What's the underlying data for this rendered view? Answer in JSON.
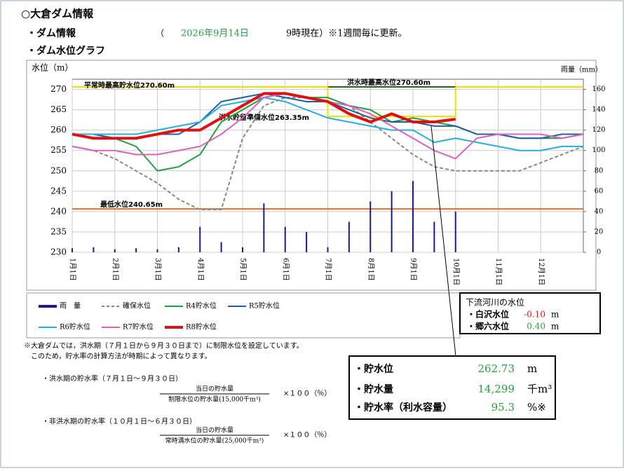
{
  "header": {
    "title": "○大倉ダム情報",
    "info_label": "・ダム情報",
    "paren_open": "（",
    "date": "2026年9月14日",
    "time_note": "9時現在）※1週間毎に更新。",
    "graph_label": "・ダム水位グラフ"
  },
  "chart_data": {
    "type": "line",
    "y_label": "水位（m）",
    "y2_label": "雨量（mm）",
    "categories": [
      "1月1日",
      null,
      "2月1日",
      null,
      "3月1日",
      null,
      "4月1日",
      null,
      "5月1日",
      null,
      "6月1日",
      null,
      "7月1日",
      null,
      "8月1日",
      null,
      "9月1日",
      null,
      "10月1日",
      null,
      "11月1日",
      null,
      "12月1日",
      null,
      null
    ],
    "ylim": [
      230,
      272.5
    ],
    "yticks": [
      230,
      235,
      240,
      245,
      250,
      255,
      260,
      265,
      270
    ],
    "y2lim": [
      0,
      170
    ],
    "y2ticks": [
      0,
      20,
      40,
      60,
      80,
      100,
      120,
      140,
      160
    ],
    "grid": true,
    "series": [
      {
        "name": "雨　量",
        "type": "bar",
        "axis": "y2",
        "color": "#1a1a8c",
        "values": [
          4,
          5,
          3,
          4,
          3,
          5,
          25,
          10,
          5,
          48,
          25,
          20,
          5,
          30,
          50,
          60,
          70,
          30,
          40,
          0,
          0,
          0,
          0,
          0,
          0
        ]
      },
      {
        "name": "確保水位",
        "color": "#888888",
        "dash": true,
        "values": [
          256,
          255,
          253,
          250,
          247,
          243,
          240.5,
          240.5,
          258,
          266,
          268,
          268,
          267,
          266,
          262,
          258,
          254,
          251,
          250,
          250,
          250,
          250,
          252,
          254,
          256
        ]
      },
      {
        "name": "R4貯水位",
        "color": "#22a040",
        "values": [
          259,
          259,
          258,
          256,
          250,
          251,
          254,
          262,
          265,
          268,
          269,
          268,
          268,
          266,
          265,
          262,
          263,
          262,
          261,
          259,
          259,
          258,
          258,
          258,
          259
        ]
      },
      {
        "name": "R5貯水位",
        "color": "#1f5fa8",
        "values": [
          259,
          259,
          258,
          258,
          259,
          259,
          262,
          267,
          268,
          269,
          268,
          267,
          267,
          265,
          263,
          262,
          262,
          261,
          261,
          259,
          259,
          258,
          258,
          259,
          259
        ]
      },
      {
        "name": "R6貯水位",
        "color": "#22b0e0",
        "values": [
          259,
          259,
          259,
          259,
          260,
          261,
          262,
          266,
          267,
          268,
          267,
          265,
          263,
          262,
          261,
          260,
          260,
          257,
          258,
          257,
          256,
          255,
          255,
          256,
          256
        ]
      },
      {
        "name": "R7貯水位",
        "color": "#e060c0",
        "values": [
          256,
          255,
          255,
          254,
          254,
          255,
          256,
          259,
          263,
          268,
          269,
          268,
          267,
          266,
          264,
          261,
          258,
          255,
          253,
          258,
          259,
          259,
          259,
          258,
          259
        ]
      },
      {
        "name": "R8貯水位",
        "color": "#e01010",
        "width": 4,
        "values": [
          259,
          258,
          258,
          258,
          259,
          260,
          260,
          263,
          266,
          269,
          269,
          268,
          267,
          264,
          262,
          264,
          262,
          262,
          262.7,
          null,
          null,
          null,
          null,
          null,
          null
        ]
      }
    ],
    "reference_lines": [
      {
        "label": "平常時最高貯水位270.60m",
        "value": 270.6,
        "color": "#f0e000"
      },
      {
        "label": "洪水時最高水位270.60m",
        "value": 270.6,
        "color": "#1a6a1a"
      },
      {
        "label": "洪水貯留準備水位263.35m",
        "value": 263.35,
        "color": "#f0e000"
      },
      {
        "label": "最低水位240.65m",
        "value": 240.65,
        "color": "#e07020"
      }
    ]
  },
  "river": {
    "title": "下流河川の水位",
    "rows": [
      [
        "・白沢水位",
        "-0.10",
        "m"
      ],
      [
        "・郷六水位",
        "0.40",
        "m"
      ]
    ]
  },
  "status": {
    "rows": [
      [
        "・貯水位",
        "262.73",
        "m"
      ],
      [
        "・貯水量",
        "14,299",
        "千m³"
      ],
      [
        "・貯水率（利水容量）",
        "95.3",
        "%※"
      ]
    ]
  },
  "notes": {
    "line1": "※大倉ダムでは，洪水期（７月１日から９月３０日まで）に制限水位を設定しています。",
    "line2": "このため，貯水率の計算方法が時期によって異なります。",
    "flood_label": "・洪水期の貯水率（７月１日～９月３０日）",
    "flood_num": "当日の貯水量",
    "flood_den": "制限水位の貯水量(15,000千m³)",
    "flood_mult": "×１００（％）",
    "nonflood_label": "・非洪水期の貯水率（１０月１日～６月３０日）",
    "nonflood_num": "当日の貯水量",
    "nonflood_den": "常時満水位の貯水量(25,000千m³)",
    "nonflood_mult": "×１００（％）"
  }
}
